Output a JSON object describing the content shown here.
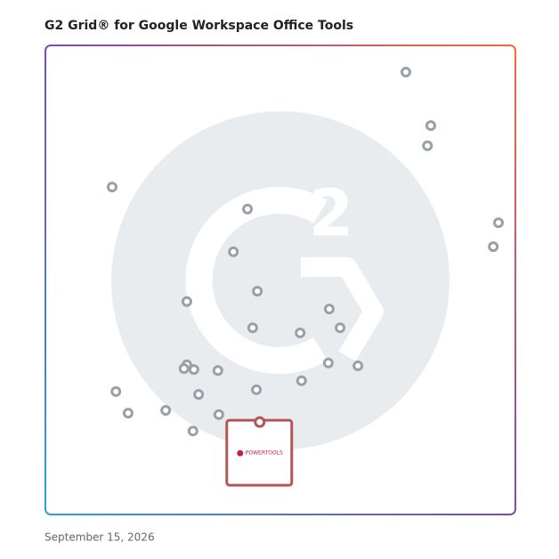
{
  "chart_data": {
    "type": "scatter",
    "title": "G2 Grid® for Google Workspace Office Tools",
    "date": "September 15, 2026",
    "xlim": [
      0,
      100
    ],
    "ylim": [
      0,
      100
    ],
    "x": [
      76.7,
      82.0,
      81.3,
      14.2,
      43.0,
      96.4,
      95.3,
      40.0,
      45.1,
      30.1,
      60.4,
      44.1,
      54.2,
      62.7,
      30.1,
      29.5,
      31.6,
      36.7,
      60.2,
      66.5,
      54.5,
      15.0,
      44.9,
      32.6,
      17.6,
      25.6,
      36.9,
      31.4
    ],
    "values": [
      94.3,
      82.9,
      78.6,
      69.8,
      65.1,
      62.2,
      57.1,
      56.0,
      47.6,
      45.4,
      43.8,
      39.8,
      38.7,
      39.8,
      31.9,
      31.1,
      30.9,
      30.7,
      32.3,
      31.7,
      28.5,
      26.2,
      26.6,
      25.6,
      21.6,
      22.2,
      21.3,
      17.8
    ],
    "color": "#9aa0a8",
    "highlight": {
      "x": 45.6,
      "y": 19.7,
      "label": "POWERTOOLS",
      "color": "#b35656"
    }
  }
}
